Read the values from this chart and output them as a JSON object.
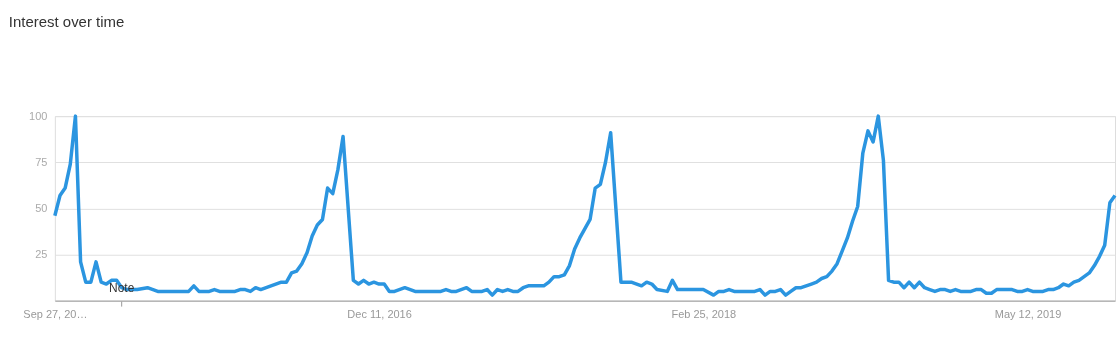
{
  "chart_data": {
    "type": "line",
    "title": "Interest over time",
    "x": [
      "2015-09-27",
      "2015-10-04",
      "2015-10-11",
      "2015-10-18",
      "2015-10-25",
      "2015-11-01",
      "2015-11-08",
      "2015-11-15",
      "2015-11-22",
      "2015-11-29",
      "2015-12-06",
      "2015-12-13",
      "2015-12-20",
      "2015-12-27",
      "2016-01-03",
      "2016-01-17",
      "2016-01-31",
      "2016-02-14",
      "2016-03-27",
      "2016-04-03",
      "2016-04-10",
      "2016-04-24",
      "2016-05-01",
      "2016-05-08",
      "2016-05-29",
      "2016-06-05",
      "2016-06-12",
      "2016-06-19",
      "2016-06-26",
      "2016-07-03",
      "2016-07-17",
      "2016-07-31",
      "2016-08-07",
      "2016-08-14",
      "2016-08-21",
      "2016-08-28",
      "2016-09-04",
      "2016-09-11",
      "2016-09-18",
      "2016-09-25",
      "2016-10-02",
      "2016-10-09",
      "2016-10-16",
      "2016-10-23",
      "2016-11-06",
      "2016-11-13",
      "2016-11-20",
      "2016-11-27",
      "2016-12-04",
      "2016-12-11",
      "2016-12-18",
      "2016-12-25",
      "2017-01-01",
      "2017-01-15",
      "2017-01-29",
      "2017-03-05",
      "2017-03-12",
      "2017-03-19",
      "2017-03-26",
      "2017-04-09",
      "2017-04-16",
      "2017-04-30",
      "2017-05-07",
      "2017-05-14",
      "2017-05-21",
      "2017-05-28",
      "2017-06-04",
      "2017-06-11",
      "2017-06-18",
      "2017-06-25",
      "2017-07-02",
      "2017-07-23",
      "2017-07-30",
      "2017-08-06",
      "2017-08-13",
      "2017-08-20",
      "2017-08-27",
      "2017-09-03",
      "2017-09-10",
      "2017-09-17",
      "2017-09-24",
      "2017-10-01",
      "2017-10-08",
      "2017-10-15",
      "2017-10-22",
      "2017-11-05",
      "2017-11-19",
      "2017-12-03",
      "2017-12-10",
      "2017-12-17",
      "2017-12-24",
      "2018-01-07",
      "2018-01-14",
      "2018-01-21",
      "2018-02-25",
      "2018-03-11",
      "2018-03-18",
      "2018-03-25",
      "2018-04-01",
      "2018-04-08",
      "2018-04-22",
      "2018-05-06",
      "2018-05-13",
      "2018-05-20",
      "2018-05-27",
      "2018-06-03",
      "2018-06-10",
      "2018-06-17",
      "2018-06-24",
      "2018-07-01",
      "2018-07-08",
      "2018-07-15",
      "2018-07-22",
      "2018-07-29",
      "2018-08-05",
      "2018-08-12",
      "2018-08-19",
      "2018-08-26",
      "2018-09-02",
      "2018-09-09",
      "2018-09-16",
      "2018-09-23",
      "2018-09-30",
      "2018-10-07",
      "2018-10-14",
      "2018-10-21",
      "2018-10-28",
      "2018-11-04",
      "2018-11-11",
      "2018-11-18",
      "2018-11-25",
      "2018-12-02",
      "2018-12-09",
      "2018-12-16",
      "2018-12-23",
      "2018-12-30",
      "2019-01-06",
      "2019-01-13",
      "2019-01-20",
      "2019-01-27",
      "2019-02-03",
      "2019-02-10",
      "2019-02-24",
      "2019-03-03",
      "2019-03-10",
      "2019-03-17",
      "2019-03-24",
      "2019-03-31",
      "2019-04-21",
      "2019-04-28",
      "2019-05-05",
      "2019-05-12",
      "2019-05-19",
      "2019-06-02",
      "2019-06-09",
      "2019-06-16",
      "2019-06-23",
      "2019-06-30",
      "2019-07-07",
      "2019-07-14",
      "2019-07-21",
      "2019-07-28",
      "2019-08-04",
      "2019-08-11",
      "2019-08-18",
      "2019-08-25",
      "2019-09-01",
      "2019-09-08"
    ],
    "series": [
      {
        "color": "#2b95e0",
        "values": [
          46,
          57,
          61,
          74,
          100,
          21,
          10,
          10,
          21,
          10,
          9,
          11,
          11,
          7,
          6,
          6,
          7,
          5,
          5,
          8,
          5,
          5,
          6,
          5,
          5,
          6,
          6,
          5,
          7,
          6,
          8,
          10,
          10,
          15,
          16,
          20,
          26,
          35,
          41,
          44,
          61,
          58,
          71,
          89,
          11,
          9,
          11,
          9,
          10,
          9,
          9,
          5,
          5,
          7,
          5,
          5,
          6,
          5,
          5,
          7,
          5,
          5,
          6,
          3,
          6,
          5,
          6,
          5,
          5,
          7,
          8,
          8,
          10,
          13,
          13,
          14,
          19,
          28,
          34,
          39,
          44,
          61,
          63,
          75,
          91,
          10,
          10,
          8,
          10,
          9,
          6,
          5,
          11,
          6,
          6,
          3,
          5,
          5,
          6,
          5,
          5,
          5,
          6,
          3,
          5,
          5,
          6,
          3,
          5,
          7,
          7,
          8,
          9,
          10,
          12,
          13,
          16,
          20,
          27,
          34,
          43,
          51,
          80,
          92,
          86,
          100,
          76,
          11,
          10,
          10,
          7,
          10,
          7,
          10,
          7,
          6,
          5,
          6,
          6,
          5,
          6,
          5,
          5,
          6,
          6,
          4,
          4,
          6,
          6,
          5,
          5,
          6,
          5,
          5,
          6,
          6,
          7,
          9,
          8,
          10,
          11,
          13,
          15,
          19,
          24,
          30,
          53,
          57
        ]
      }
    ],
    "xlim": [
      "2015-09-27",
      "2019-09-08"
    ],
    "xticks": [
      {
        "value": "2015-09-27",
        "label": "Sep 27, 20…"
      },
      {
        "value": "2016-12-11",
        "label": "Dec 11, 2016"
      },
      {
        "value": "2018-02-25",
        "label": "Feb 25, 2018"
      },
      {
        "value": "2019-05-12",
        "label": "May 12, 2019"
      }
    ],
    "ylim": [
      0,
      100
    ],
    "yticks": [
      25,
      50,
      75,
      100
    ],
    "grid": "y",
    "marker": "none",
    "line_style": "solid",
    "annotations": [
      "Note"
    ]
  }
}
